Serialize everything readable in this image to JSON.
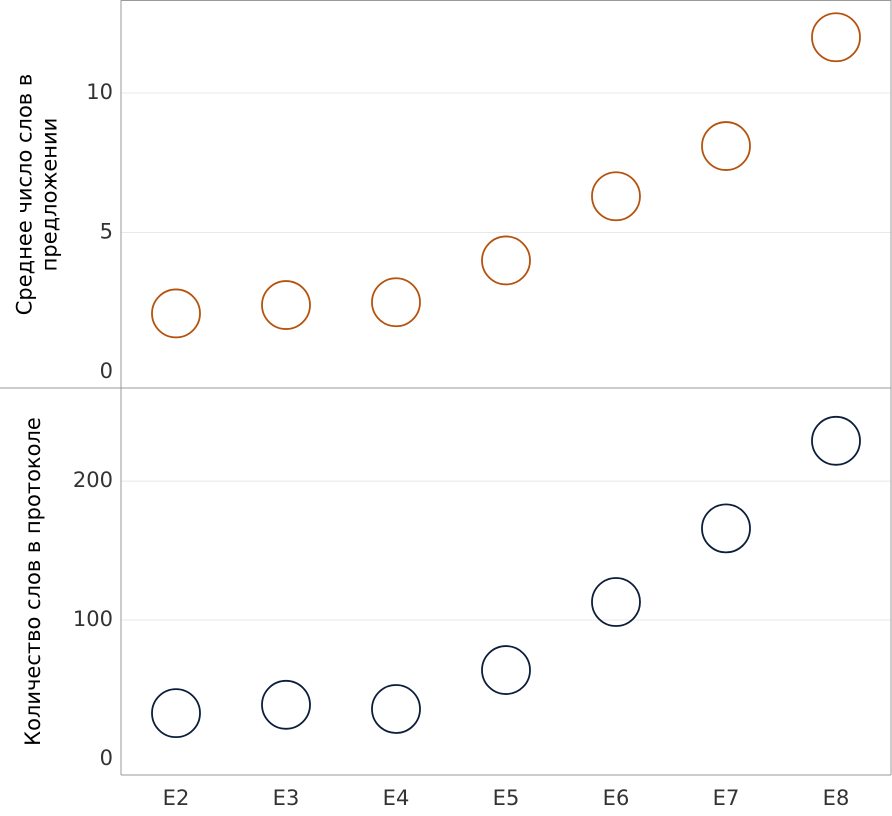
{
  "chart_data": {
    "type": "scatter",
    "categories": [
      "E2",
      "E3",
      "E4",
      "E5",
      "E6",
      "E7",
      "E8"
    ],
    "panels": [
      {
        "ylabel_lines": [
          "Среднее число слов в",
          "предложении"
        ],
        "ylim": [
          0,
          13.3
        ],
        "yticks": [
          0,
          5,
          10
        ],
        "color": "#b5520e",
        "values": [
          2.1,
          2.4,
          2.5,
          4.0,
          6.3,
          8.1,
          12.0
        ]
      },
      {
        "ylabel_lines": [
          "Количество слов в протоколе"
        ],
        "ylim": [
          0,
          267
        ],
        "yticks": [
          0,
          100,
          200
        ],
        "color": "#0d1e3b",
        "values": [
          33,
          39,
          36,
          64,
          113,
          166,
          229
        ]
      }
    ],
    "grid": true,
    "marker": "hollow-circle"
  }
}
